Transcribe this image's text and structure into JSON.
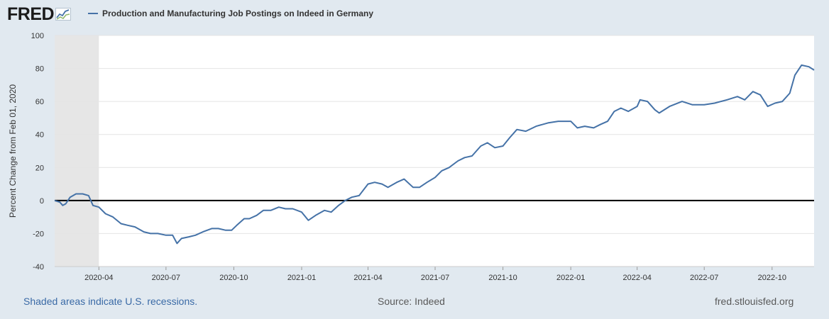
{
  "header": {
    "logo_text": "FRED",
    "legend_label": "Production and Manufacturing Job Postings on Indeed in Germany"
  },
  "footer": {
    "recession_note": "Shaded areas indicate U.S. recessions.",
    "source": "Source: Indeed",
    "site": "fred.stlouisfed.org"
  },
  "colors": {
    "series": "#4572a7",
    "background": "#e1e9f0",
    "plot": "#ffffff",
    "recession": "#e6e6e6"
  },
  "chart_data": {
    "type": "line",
    "title": "",
    "ylabel": "Percent Change from Feb 01, 2020",
    "xlabel": "",
    "ylim": [
      -40,
      100
    ],
    "xlim": [
      "2020-02-01",
      "2022-11-27"
    ],
    "yticks": [
      100,
      80,
      60,
      40,
      20,
      0,
      -20,
      -40
    ],
    "xticks": [
      "2020-04",
      "2020-07",
      "2020-10",
      "2021-01",
      "2021-04",
      "2021-07",
      "2021-10",
      "2022-01",
      "2022-04",
      "2022-07",
      "2022-10"
    ],
    "recessions": [
      {
        "start": "2020-02-01",
        "end": "2020-04-01"
      }
    ],
    "grid": "horizontal",
    "zero_line": true,
    "series": [
      {
        "name": "Production and Manufacturing Job Postings on Indeed in Germany",
        "points": [
          [
            "2020-02-01",
            0
          ],
          [
            "2020-02-08",
            -1
          ],
          [
            "2020-02-12",
            -3
          ],
          [
            "2020-02-16",
            -2
          ],
          [
            "2020-02-22",
            2
          ],
          [
            "2020-03-01",
            4
          ],
          [
            "2020-03-10",
            4
          ],
          [
            "2020-03-18",
            3
          ],
          [
            "2020-03-24",
            -3
          ],
          [
            "2020-04-01",
            -4
          ],
          [
            "2020-04-10",
            -8
          ],
          [
            "2020-04-20",
            -10
          ],
          [
            "2020-05-01",
            -14
          ],
          [
            "2020-05-10",
            -15
          ],
          [
            "2020-05-20",
            -16
          ],
          [
            "2020-06-01",
            -19
          ],
          [
            "2020-06-10",
            -20
          ],
          [
            "2020-06-20",
            -20
          ],
          [
            "2020-07-01",
            -21
          ],
          [
            "2020-07-10",
            -21
          ],
          [
            "2020-07-16",
            -26
          ],
          [
            "2020-07-22",
            -23
          ],
          [
            "2020-08-01",
            -22
          ],
          [
            "2020-08-10",
            -21
          ],
          [
            "2020-08-20",
            -19
          ],
          [
            "2020-09-01",
            -17
          ],
          [
            "2020-09-10",
            -17
          ],
          [
            "2020-09-20",
            -18
          ],
          [
            "2020-09-28",
            -18
          ],
          [
            "2020-10-05",
            -15
          ],
          [
            "2020-10-15",
            -11
          ],
          [
            "2020-10-22",
            -11
          ],
          [
            "2020-11-01",
            -9
          ],
          [
            "2020-11-10",
            -6
          ],
          [
            "2020-11-20",
            -6
          ],
          [
            "2020-12-01",
            -4
          ],
          [
            "2020-12-10",
            -5
          ],
          [
            "2020-12-20",
            -5
          ],
          [
            "2021-01-01",
            -7
          ],
          [
            "2021-01-10",
            -12
          ],
          [
            "2021-01-20",
            -9
          ],
          [
            "2021-02-01",
            -6
          ],
          [
            "2021-02-10",
            -7
          ],
          [
            "2021-02-20",
            -3
          ],
          [
            "2021-03-01",
            0
          ],
          [
            "2021-03-10",
            2
          ],
          [
            "2021-03-20",
            3
          ],
          [
            "2021-04-01",
            10
          ],
          [
            "2021-04-10",
            11
          ],
          [
            "2021-04-20",
            10
          ],
          [
            "2021-04-28",
            8
          ],
          [
            "2021-05-10",
            11
          ],
          [
            "2021-05-20",
            13
          ],
          [
            "2021-06-01",
            8
          ],
          [
            "2021-06-10",
            8
          ],
          [
            "2021-06-20",
            11
          ],
          [
            "2021-07-01",
            14
          ],
          [
            "2021-07-10",
            18
          ],
          [
            "2021-07-20",
            20
          ],
          [
            "2021-08-01",
            24
          ],
          [
            "2021-08-10",
            26
          ],
          [
            "2021-08-20",
            27
          ],
          [
            "2021-09-01",
            33
          ],
          [
            "2021-09-10",
            35
          ],
          [
            "2021-09-20",
            32
          ],
          [
            "2021-10-01",
            33
          ],
          [
            "2021-10-10",
            38
          ],
          [
            "2021-10-20",
            43
          ],
          [
            "2021-11-01",
            42
          ],
          [
            "2021-11-15",
            45
          ],
          [
            "2021-12-01",
            47
          ],
          [
            "2021-12-15",
            48
          ],
          [
            "2022-01-01",
            48
          ],
          [
            "2022-01-10",
            44
          ],
          [
            "2022-01-20",
            45
          ],
          [
            "2022-02-01",
            44
          ],
          [
            "2022-02-10",
            46
          ],
          [
            "2022-02-20",
            48
          ],
          [
            "2022-03-01",
            54
          ],
          [
            "2022-03-10",
            56
          ],
          [
            "2022-03-20",
            54
          ],
          [
            "2022-04-01",
            57
          ],
          [
            "2022-04-05",
            61
          ],
          [
            "2022-04-15",
            60
          ],
          [
            "2022-04-25",
            55
          ],
          [
            "2022-05-01",
            53
          ],
          [
            "2022-05-15",
            57
          ],
          [
            "2022-06-01",
            60
          ],
          [
            "2022-06-15",
            58
          ],
          [
            "2022-07-01",
            58
          ],
          [
            "2022-07-15",
            59
          ],
          [
            "2022-08-01",
            61
          ],
          [
            "2022-08-15",
            63
          ],
          [
            "2022-08-25",
            61
          ],
          [
            "2022-09-05",
            66
          ],
          [
            "2022-09-15",
            64
          ],
          [
            "2022-09-25",
            57
          ],
          [
            "2022-10-05",
            59
          ],
          [
            "2022-10-15",
            60
          ],
          [
            "2022-10-25",
            65
          ],
          [
            "2022-11-01",
            76
          ],
          [
            "2022-11-10",
            82
          ],
          [
            "2022-11-20",
            81
          ],
          [
            "2022-11-27",
            79
          ]
        ]
      }
    ]
  }
}
